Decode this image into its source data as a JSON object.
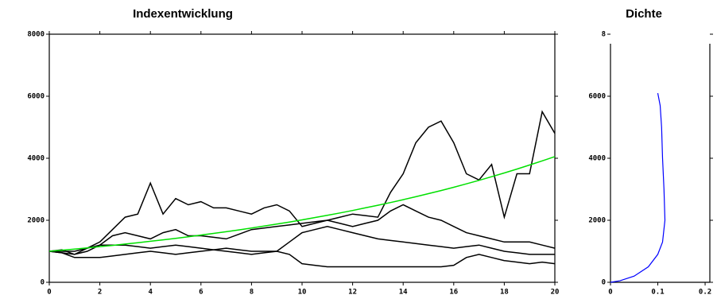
{
  "chart_data": [
    {
      "type": "line",
      "title": "Indexentwicklung",
      "x": [
        0,
        0.5,
        1,
        1.5,
        2,
        2.5,
        3,
        3.5,
        4,
        4.5,
        5,
        5.5,
        6,
        6.5,
        7,
        7.5,
        8,
        8.5,
        9,
        9.5,
        10,
        10.5,
        11,
        11.5,
        12,
        12.5,
        13,
        13.5,
        14,
        14.5,
        15,
        15.5,
        16,
        16.5,
        17,
        17.5,
        18,
        18.5,
        19,
        19.5,
        20
      ],
      "xlim": [
        0,
        20
      ],
      "xticks": [
        0,
        2,
        4,
        6,
        8,
        10,
        12,
        14,
        16,
        18,
        20
      ],
      "ylim": [
        0,
        8000
      ],
      "yticks": [
        0,
        2000,
        4000,
        6000,
        8000
      ],
      "series": [
        {
          "color": "#000000",
          "values": [
            1000,
            1050,
            900,
            1000,
            1200,
            1500,
            1600,
            1500,
            1400,
            1600,
            1700,
            1500,
            1500,
            1450,
            1400,
            1550,
            1700,
            1750,
            1800,
            1850,
            1900,
            1950,
            2000,
            2100,
            2200,
            2150,
            2100,
            2900,
            3500,
            4500,
            5000,
            5200,
            4500,
            3500,
            3300,
            3800,
            2100,
            3500,
            3500,
            5500,
            4800
          ]
        },
        {
          "color": "#000000",
          "values": [
            1000,
            950,
            900,
            1100,
            1300,
            1700,
            2100,
            2200,
            3200,
            2200,
            2700,
            2500,
            2600,
            2400,
            2400,
            2300,
            2200,
            2400,
            2500,
            2300,
            1800,
            1900,
            2000,
            1900,
            1800,
            1900,
            2000,
            2300,
            2500,
            2300,
            2100,
            2000,
            1800,
            1600,
            1500,
            1400,
            1300,
            1300,
            1300,
            1200,
            1100
          ]
        },
        {
          "color": "#000000",
          "values": [
            1000,
            950,
            800,
            800,
            800,
            850,
            900,
            950,
            1000,
            950,
            900,
            950,
            1000,
            1050,
            1100,
            1050,
            1000,
            1000,
            1000,
            900,
            600,
            550,
            500,
            500,
            500,
            500,
            500,
            500,
            500,
            500,
            500,
            500,
            550,
            800,
            900,
            800,
            700,
            650,
            600,
            650,
            600
          ]
        },
        {
          "color": "#000000",
          "values": [
            1000,
            1000,
            1000,
            1100,
            1200,
            1200,
            1200,
            1150,
            1100,
            1150,
            1200,
            1150,
            1100,
            1050,
            1000,
            950,
            900,
            950,
            1000,
            1300,
            1600,
            1700,
            1800,
            1700,
            1600,
            1500,
            1400,
            1350,
            1300,
            1250,
            1200,
            1150,
            1100,
            1150,
            1200,
            1100,
            1000,
            950,
            900,
            900,
            900
          ]
        },
        {
          "color": "#00e000",
          "values": [
            1000,
            1036,
            1072,
            1110,
            1150,
            1191,
            1234,
            1278,
            1323,
            1370,
            1419,
            1470,
            1522,
            1576,
            1632,
            1690,
            1751,
            1813,
            1878,
            1944,
            2014,
            2086,
            2160,
            2237,
            2316,
            2399,
            2484,
            2573,
            2664,
            2759,
            2858,
            2959,
            3065,
            3174,
            3287,
            3404,
            3525,
            3651,
            3781,
            3916,
            4055
          ]
        }
      ]
    },
    {
      "type": "density",
      "title": "Dichte",
      "xlim": [
        0,
        0.21
      ],
      "xticks": [
        0,
        0.1,
        0.2
      ],
      "ylim": [
        0,
        8000
      ],
      "yticks": [
        0,
        2000,
        4000,
        6000,
        {
          "value": 8000,
          "label": "8"
        }
      ],
      "series": [
        {
          "color": "#0000ff",
          "x": [
            0,
            0.02,
            0.05,
            0.08,
            0.1,
            0.11,
            0.115,
            0.113,
            0.11,
            0.108,
            0.105,
            0.1
          ],
          "y": [
            0,
            50,
            200,
            500,
            900,
            1300,
            2000,
            3000,
            4000,
            5000,
            5700,
            6100
          ]
        }
      ]
    }
  ]
}
